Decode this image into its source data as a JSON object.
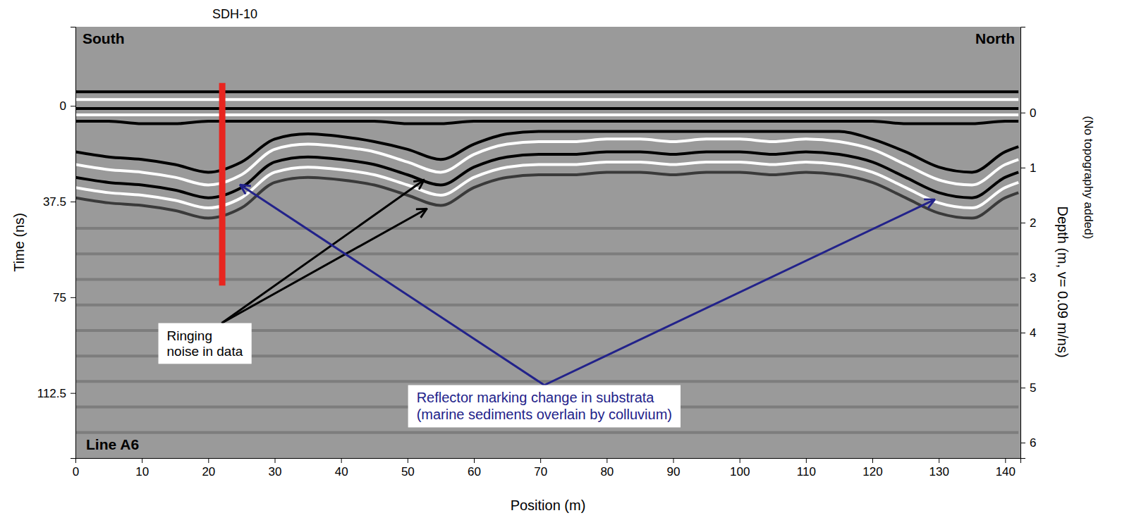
{
  "chart_data": {
    "type": "line",
    "color": "#9a9a9a",
    "x_label": "Position (m)",
    "y_label": "Time (ns)",
    "y2_label": [
      "Depth (m, v= 0.09 m/ns)",
      "(No topography added)"
    ],
    "direction_labels": [
      "South",
      "North"
    ],
    "line_label": "Line A6",
    "xlim": [
      0,
      142.3
    ],
    "xticks": [
      0,
      10,
      20,
      30,
      40,
      50,
      60,
      70,
      80,
      90,
      100,
      110,
      120,
      130,
      140
    ],
    "ylim": [
      -31,
      138
    ],
    "yticks": [
      0,
      37.5,
      75,
      112.5
    ],
    "y2lim": [
      -1.56,
      6.28
    ],
    "y2ticks": [
      0,
      1,
      2,
      3,
      4,
      5,
      6
    ],
    "x": [
      0,
      5,
      10,
      15,
      20,
      25,
      30,
      35,
      40,
      45,
      50,
      55,
      60,
      65,
      70,
      75,
      80,
      85,
      90,
      95,
      100,
      105,
      110,
      115,
      120,
      125,
      130,
      135,
      140,
      142
    ],
    "series": [
      {
        "color": "#000000",
        "values": [
          -5.5,
          -5.5,
          -5.5,
          -5.5,
          -5.5,
          -5.5,
          -5.5,
          -5.5,
          -5.5,
          -5.5,
          -5.5,
          -5.5,
          -5.5,
          -5.5,
          -5.5,
          -5.5,
          -5.5,
          -5.5,
          -5.5,
          -5.5,
          -5.5,
          -5.5,
          -5.5,
          -5.5,
          -5.5,
          -5.5,
          -5.5,
          -5.5,
          -5.5,
          -5.5
        ]
      },
      {
        "color": "#ffffff",
        "values": [
          -2.5,
          -2.5,
          -2.5,
          -2.5,
          -2.5,
          -2.5,
          -2.5,
          -2.5,
          -2.5,
          -2.5,
          -2.5,
          -2.5,
          -2.5,
          -2.5,
          -2.5,
          -2.5,
          -2.5,
          -2.5,
          -2.5,
          -2.5,
          -2.5,
          -2.5,
          -2.5,
          -2.5,
          -2.5,
          -2.5,
          -2.5,
          -2.5,
          -2.5,
          -2.5
        ]
      },
      {
        "color": "#000000",
        "values": [
          1,
          1,
          1,
          1,
          1,
          1,
          1,
          1,
          1,
          1,
          1,
          1,
          1,
          1,
          1,
          1,
          1,
          1,
          1,
          1,
          1,
          1,
          1,
          1,
          1,
          1,
          1,
          1,
          1,
          1
        ]
      },
      {
        "color": "#ffffff",
        "values": [
          3.5,
          3.5,
          3.5,
          3.5,
          3.5,
          3.5,
          3.5,
          3.5,
          3.5,
          3.5,
          3.5,
          3.5,
          3.5,
          3.5,
          3.5,
          3.5,
          3.5,
          3.5,
          3.5,
          3.5,
          3.5,
          3.5,
          3.5,
          3.5,
          3.5,
          3.5,
          3.5,
          3.5,
          3.5,
          3.5
        ]
      },
      {
        "color": "#000000",
        "values": [
          6,
          6,
          7,
          7,
          6,
          6,
          6,
          6,
          6,
          6,
          7,
          7,
          6,
          6,
          6,
          6,
          6,
          6,
          6,
          6,
          6,
          6,
          6,
          6,
          6,
          7,
          7,
          7,
          6,
          6
        ]
      },
      {
        "color": "#000000",
        "values": [
          18,
          20,
          21,
          23,
          26,
          22,
          13,
          11,
          12,
          14,
          17,
          21,
          15,
          11,
          10,
          10,
          10,
          10,
          10,
          10,
          10,
          10,
          10,
          10,
          13,
          18,
          24,
          26,
          18,
          16
        ]
      },
      {
        "color": "#ffffff",
        "values": [
          23,
          25,
          26,
          28,
          31,
          27,
          17,
          15,
          16,
          18,
          22,
          26,
          19,
          15,
          14,
          14,
          13,
          13,
          14,
          13,
          13,
          14,
          13,
          14,
          17,
          23,
          29,
          31,
          23,
          21
        ]
      },
      {
        "color": "#000000",
        "values": [
          28,
          30,
          31,
          33,
          36,
          32,
          22,
          20,
          21,
          23,
          27,
          31,
          24,
          20,
          19,
          19,
          18,
          18,
          19,
          18,
          18,
          19,
          18,
          19,
          22,
          28,
          34,
          36,
          28,
          26
        ]
      },
      {
        "color": "#ffffff",
        "values": [
          32,
          34,
          35,
          37,
          40,
          36,
          26,
          24,
          25,
          27,
          31,
          35,
          28,
          24,
          23,
          23,
          22,
          22,
          23,
          22,
          22,
          23,
          22,
          23,
          26,
          32,
          38,
          40,
          32,
          30
        ]
      },
      {
        "color": "#3a3a3a",
        "values": [
          36,
          38,
          39,
          41,
          44,
          40,
          30,
          28,
          29,
          31,
          35,
          39,
          32,
          28,
          27,
          27,
          26,
          26,
          27,
          26,
          26,
          27,
          26,
          27,
          30,
          36,
          42,
          44,
          36,
          34
        ]
      },
      {
        "color": "#7d7d7d",
        "values": [
          48,
          48,
          48,
          48,
          48,
          48,
          48,
          48,
          48,
          48,
          48,
          48,
          48,
          48,
          48,
          48,
          48,
          48,
          48,
          48,
          48,
          48,
          48,
          48,
          48,
          48,
          48,
          48,
          48,
          48
        ]
      },
      {
        "color": "#7d7d7d",
        "values": [
          58,
          58,
          58,
          58,
          58,
          58,
          58,
          58,
          58,
          58,
          58,
          58,
          58,
          58,
          58,
          58,
          58,
          58,
          58,
          58,
          58,
          58,
          58,
          58,
          58,
          58,
          58,
          58,
          58,
          58
        ]
      },
      {
        "color": "#7d7d7d",
        "values": [
          68,
          68,
          68,
          68,
          68,
          68,
          68,
          68,
          68,
          68,
          68,
          68,
          68,
          68,
          68,
          68,
          68,
          68,
          68,
          68,
          68,
          68,
          68,
          68,
          68,
          68,
          68,
          68,
          68,
          68
        ]
      },
      {
        "color": "#7d7d7d",
        "values": [
          78,
          78,
          78,
          78,
          78,
          78,
          78,
          78,
          78,
          78,
          78,
          78,
          78,
          78,
          78,
          78,
          78,
          78,
          78,
          78,
          78,
          78,
          78,
          78,
          78,
          78,
          78,
          78,
          78,
          78
        ]
      },
      {
        "color": "#7d7d7d",
        "values": [
          88,
          88,
          88,
          88,
          88,
          88,
          88,
          88,
          88,
          88,
          88,
          88,
          88,
          88,
          88,
          88,
          88,
          88,
          88,
          88,
          88,
          88,
          88,
          88,
          88,
          88,
          88,
          88,
          88,
          88
        ]
      },
      {
        "color": "#7d7d7d",
        "values": [
          98,
          98,
          98,
          98,
          98,
          98,
          98,
          98,
          98,
          98,
          98,
          98,
          98,
          98,
          98,
          98,
          98,
          98,
          98,
          98,
          98,
          98,
          98,
          98,
          98,
          98,
          98,
          98,
          98,
          98
        ]
      },
      {
        "color": "#7d7d7d",
        "values": [
          108,
          108,
          108,
          108,
          108,
          108,
          108,
          108,
          108,
          108,
          108,
          108,
          108,
          108,
          108,
          108,
          108,
          108,
          108,
          108,
          108,
          108,
          108,
          108,
          108,
          108,
          108,
          108,
          108,
          108
        ]
      },
      {
        "color": "#7d7d7d",
        "values": [
          118,
          118,
          118,
          118,
          118,
          118,
          118,
          118,
          118,
          118,
          118,
          118,
          118,
          118,
          118,
          118,
          118,
          118,
          118,
          118,
          118,
          118,
          118,
          118,
          118,
          118,
          118,
          118,
          118,
          118
        ]
      },
      {
        "color": "#7d7d7d",
        "values": [
          128,
          128,
          128,
          128,
          128,
          128,
          128,
          128,
          128,
          128,
          128,
          128,
          128,
          128,
          128,
          128,
          128,
          128,
          128,
          128,
          128,
          128,
          128,
          128,
          128,
          128,
          128,
          128,
          128,
          128
        ]
      }
    ],
    "borehole": {
      "label": "SDH-10",
      "x": 22.1,
      "y": [
        -9,
        70.4
      ],
      "color": "#e8251f"
    },
    "annotations": [
      {
        "text": [
          "Ringing",
          "noise in data"
        ],
        "color": "#000000",
        "x": 19.5,
        "y": 93.1,
        "arrows": [
          {
            "x": 52.5,
            "y": 29.0
          },
          {
            "x": 52.9,
            "y": 40.3
          }
        ]
      },
      {
        "text": [
          "Reflector marking change in substrata",
          "(marine sediments overlain by colluvium)"
        ],
        "color": "#22228a",
        "x": 70.6,
        "y": 117.7,
        "arrows": [
          {
            "x": 24.8,
            "y": 30.9
          },
          {
            "x": 129.4,
            "y": 36.7
          }
        ]
      }
    ]
  }
}
